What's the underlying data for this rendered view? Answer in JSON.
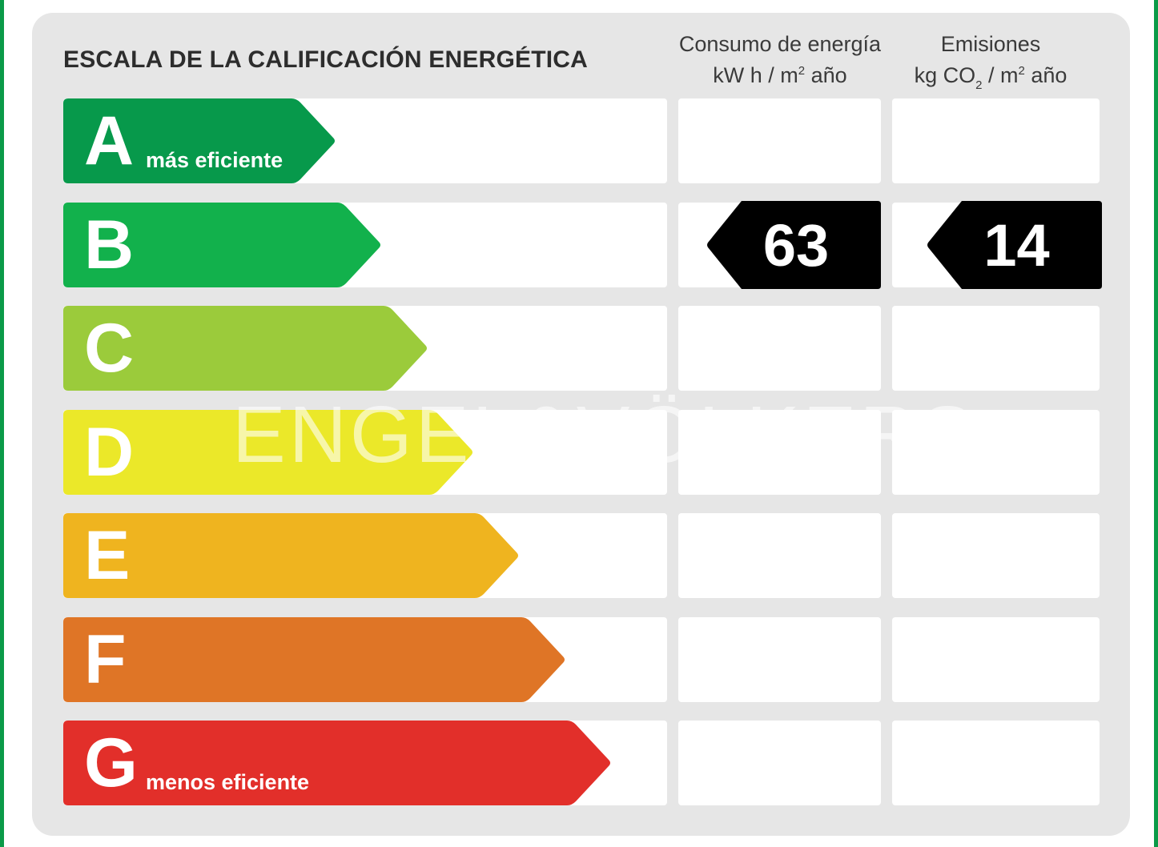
{
  "title": "ESCALA DE LA CALIFICACIÓN ENERGÉTICA",
  "columns": {
    "energy": {
      "line1": "Consumo de energía",
      "unit_a": "kW h  / m",
      "unit_sup": "2",
      "unit_b": " año"
    },
    "emissions": {
      "line1": "Emisiones",
      "unit_a": "kg CO",
      "unit_sub": "2",
      "unit_mid": "  / m",
      "unit_sup": "2",
      "unit_b": " año"
    }
  },
  "ratings": [
    {
      "letter": "A",
      "label": "más eficiente",
      "color": "#07994b"
    },
    {
      "letter": "B",
      "label": "",
      "color": "#12b14c"
    },
    {
      "letter": "C",
      "label": "",
      "color": "#9bcb3b"
    },
    {
      "letter": "D",
      "label": "",
      "color": "#ebe829"
    },
    {
      "letter": "E",
      "label": "",
      "color": "#efb41f"
    },
    {
      "letter": "F",
      "label": "",
      "color": "#df7526"
    },
    {
      "letter": "G",
      "label": "menos eficiente",
      "color": "#e22f2a"
    }
  ],
  "result": {
    "rating": "B",
    "energy_value": "63",
    "emissions_value": "14",
    "badge_color": "#000000"
  },
  "watermark": "ENGEL&VÖLKERS"
}
